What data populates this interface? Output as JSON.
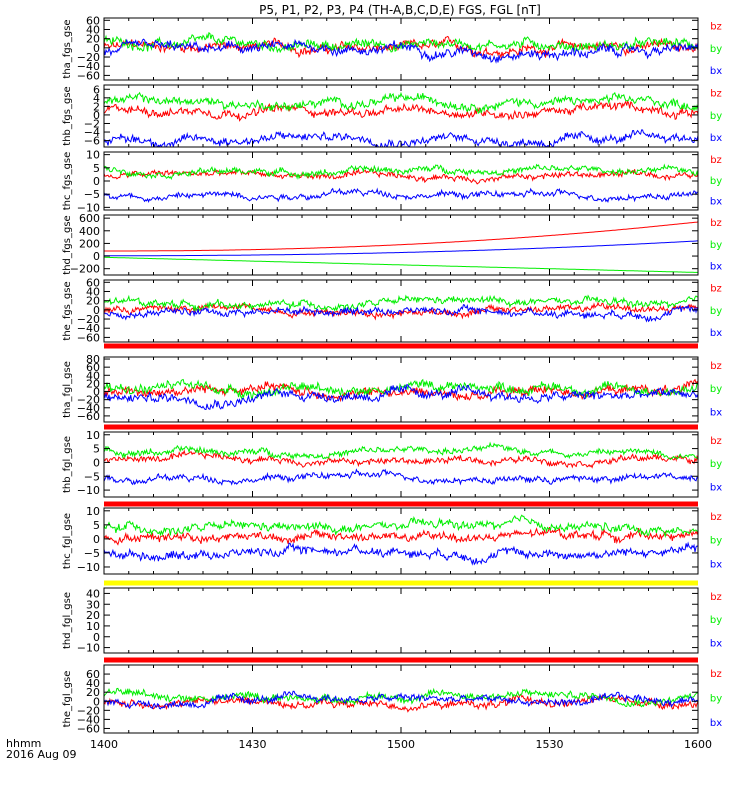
{
  "chart_data": {
    "type": "line",
    "title": "P5, P1, P2, P3, P4 (TH-A,B,C,D,E) FGS, FGL [nT]",
    "x_axis": {
      "label_line1": "hhmm",
      "label_line2": "2016 Aug 09",
      "range": [
        "14:00",
        "16:00"
      ],
      "ticks": [
        "1400",
        "1430",
        "1500",
        "1530",
        "1600"
      ]
    },
    "series_colors": {
      "bz": "#ff0000",
      "by": "#00ee00",
      "bx": "#0000ff"
    },
    "legend_labels": [
      "bz",
      "by",
      "bx"
    ],
    "panels": [
      {
        "name": "tha_fgs_gse",
        "ylim": [
          -70,
          65
        ],
        "ticks": [
          "60",
          "40",
          "20",
          "0",
          "−20",
          "−40",
          "−60"
        ],
        "tick_values": [
          60,
          40,
          20,
          0,
          -20,
          -40,
          -60
        ],
        "series": [
          {
            "name": "bz",
            "level": 0
          },
          {
            "name": "by",
            "level": 8
          },
          {
            "name": "bx",
            "level": -5
          }
        ],
        "noise": 12
      },
      {
        "name": "thb_fgs_gse",
        "ylim": [
          -7.5,
          7
        ],
        "ticks": [
          "6",
          "4",
          "2",
          "0",
          "−2",
          "−4",
          "−6"
        ],
        "tick_values": [
          6,
          4,
          2,
          0,
          -2,
          -4,
          -6
        ],
        "series": [
          {
            "name": "bz",
            "level": 1
          },
          {
            "name": "by",
            "level": 3
          },
          {
            "name": "bx",
            "level": -5.5
          }
        ],
        "noise": 1.2
      },
      {
        "name": "thc_fgs_gse",
        "ylim": [
          -11,
          11
        ],
        "ticks": [
          "10",
          "5",
          "0",
          "−5",
          "−10"
        ],
        "tick_values": [
          10,
          5,
          0,
          -5,
          -10
        ],
        "series": [
          {
            "name": "bz",
            "level": 2
          },
          {
            "name": "by",
            "level": 4
          },
          {
            "name": "bx",
            "level": -5
          }
        ],
        "noise": 1.4
      },
      {
        "name": "thd_fgs_gse",
        "ylim": [
          -300,
          650
        ],
        "ticks": [
          "600",
          "400",
          "200",
          "0",
          "−200"
        ],
        "tick_values": [
          600,
          400,
          200,
          0,
          -200
        ],
        "series": [
          {
            "name": "bz",
            "start": 80,
            "end": 540,
            "trend": "exp"
          },
          {
            "name": "by",
            "start": -20,
            "end": -260,
            "trend": "linear"
          },
          {
            "name": "bx",
            "start": 5,
            "end": 240,
            "trend": "exp"
          }
        ],
        "noise": 0
      },
      {
        "name": "the_fgs_gse",
        "ylim": [
          -70,
          65
        ],
        "ticks": [
          "60",
          "40",
          "20",
          "0",
          "−20",
          "−40",
          "−60"
        ],
        "tick_values": [
          60,
          40,
          20,
          0,
          -20,
          -40,
          -60
        ],
        "series": [
          {
            "name": "bz",
            "level": 0
          },
          {
            "name": "by",
            "level": 14
          },
          {
            "name": "bx",
            "level": -2
          }
        ],
        "noise": 9
      },
      {
        "name": "tha_fgl_gse",
        "ylim": [
          -75,
          85
        ],
        "ticks": [
          "80",
          "60",
          "40",
          "20",
          "0",
          "−20",
          "−40",
          "−60"
        ],
        "tick_values": [
          80,
          60,
          40,
          20,
          0,
          -20,
          -40,
          -60
        ],
        "series": [
          {
            "name": "bz",
            "level": 0
          },
          {
            "name": "by",
            "level": 10
          },
          {
            "name": "bx",
            "level": -10
          }
        ],
        "noise": 14
      },
      {
        "name": "thb_fgl_gse",
        "ylim": [
          -12.5,
          11
        ],
        "ticks": [
          "10",
          "5",
          "0",
          "−5",
          "−10"
        ],
        "tick_values": [
          10,
          5,
          0,
          -5,
          -10
        ],
        "series": [
          {
            "name": "bz",
            "level": 1
          },
          {
            "name": "by",
            "level": 4
          },
          {
            "name": "bx",
            "level": -5.5
          }
        ],
        "noise": 1.4
      },
      {
        "name": "thc_fgl_gse",
        "ylim": [
          -12.5,
          11
        ],
        "ticks": [
          "10",
          "5",
          "0",
          "−5",
          "−10"
        ],
        "tick_values": [
          10,
          5,
          0,
          -5,
          -10
        ],
        "series": [
          {
            "name": "bz",
            "level": 1
          },
          {
            "name": "by",
            "level": 4
          },
          {
            "name": "bx",
            "level": -4.5
          }
        ],
        "noise": 1.8
      },
      {
        "name": "thd_fgl_gse",
        "ylim": [
          -15,
          45
        ],
        "ticks": [
          "40",
          "30",
          "20",
          "10",
          "0",
          "−10"
        ],
        "tick_values": [
          40,
          30,
          20,
          10,
          0,
          -10
        ],
        "series": [],
        "noise": 0
      },
      {
        "name": "the_fgl_gse",
        "ylim": [
          -70,
          80
        ],
        "ticks": [
          "60",
          "40",
          "20",
          "0",
          "−20",
          "−40",
          "−60"
        ],
        "tick_values": [
          60,
          40,
          20,
          0,
          -20,
          -40,
          -60
        ],
        "series": [
          {
            "name": "bz",
            "level": -4
          },
          {
            "name": "by",
            "level": 12
          },
          {
            "name": "bx",
            "level": 2
          }
        ],
        "noise": 10
      }
    ],
    "status_bars": [
      {
        "after_panel": 4,
        "color": "#ff0000"
      },
      {
        "after_panel": 5,
        "color": "#ff0000"
      },
      {
        "after_panel": 6,
        "color": "#ff0000"
      },
      {
        "after_panel": 7,
        "color": "#ffff00"
      },
      {
        "after_panel": 8,
        "color": "#ff0000"
      }
    ]
  }
}
